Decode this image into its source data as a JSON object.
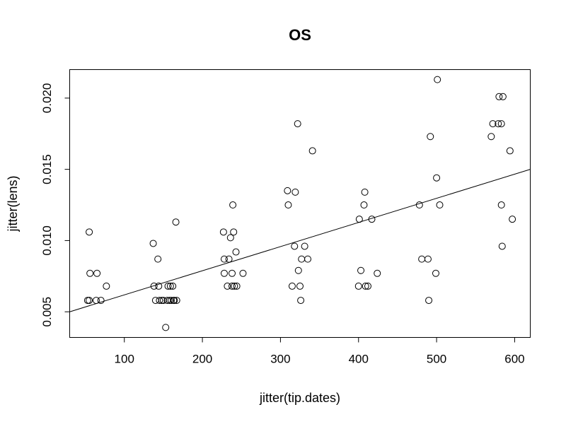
{
  "chart_data": {
    "type": "scatter",
    "title": "OS",
    "xlabel": "jitter(tip.dates)",
    "ylabel": "jitter(lens)",
    "xlim": [
      30,
      620
    ],
    "ylim": [
      0.0032,
      0.022
    ],
    "x_ticks": [
      100,
      200,
      300,
      400,
      500,
      600
    ],
    "y_ticks": [
      0.005,
      0.01,
      0.015,
      0.02
    ],
    "x_tick_labels": [
      "100",
      "200",
      "300",
      "400",
      "500",
      "600"
    ],
    "y_tick_labels": [
      "0.005",
      "0.010",
      "0.015",
      "0.020"
    ],
    "grid": false,
    "legend": "none",
    "regression_line": {
      "x": [
        30,
        620
      ],
      "y": [
        0.005,
        0.015
      ]
    },
    "points": [
      {
        "x": 53,
        "y": 0.0058
      },
      {
        "x": 55,
        "y": 0.0058
      },
      {
        "x": 55,
        "y": 0.0106
      },
      {
        "x": 56,
        "y": 0.0077
      },
      {
        "x": 64,
        "y": 0.0058
      },
      {
        "x": 65,
        "y": 0.0077
      },
      {
        "x": 70,
        "y": 0.0058
      },
      {
        "x": 77,
        "y": 0.0068
      },
      {
        "x": 137,
        "y": 0.0098
      },
      {
        "x": 138,
        "y": 0.0068
      },
      {
        "x": 140,
        "y": 0.0058
      },
      {
        "x": 143,
        "y": 0.0087
      },
      {
        "x": 144,
        "y": 0.0068
      },
      {
        "x": 145,
        "y": 0.0058
      },
      {
        "x": 148,
        "y": 0.0058
      },
      {
        "x": 150,
        "y": 0.0058
      },
      {
        "x": 153,
        "y": 0.0039
      },
      {
        "x": 155,
        "y": 0.0058
      },
      {
        "x": 156,
        "y": 0.0068
      },
      {
        "x": 158,
        "y": 0.0058
      },
      {
        "x": 159,
        "y": 0.0068
      },
      {
        "x": 160,
        "y": 0.0058
      },
      {
        "x": 162,
        "y": 0.0068
      },
      {
        "x": 163,
        "y": 0.0058
      },
      {
        "x": 164,
        "y": 0.0058
      },
      {
        "x": 166,
        "y": 0.0113
      },
      {
        "x": 167,
        "y": 0.0058
      },
      {
        "x": 227,
        "y": 0.0106
      },
      {
        "x": 228,
        "y": 0.0087
      },
      {
        "x": 228,
        "y": 0.0077
      },
      {
        "x": 232,
        "y": 0.0068
      },
      {
        "x": 234,
        "y": 0.0087
      },
      {
        "x": 236,
        "y": 0.0102
      },
      {
        "x": 238,
        "y": 0.0077
      },
      {
        "x": 238,
        "y": 0.0068
      },
      {
        "x": 239,
        "y": 0.0125
      },
      {
        "x": 240,
        "y": 0.0106
      },
      {
        "x": 241,
        "y": 0.0068
      },
      {
        "x": 243,
        "y": 0.0092
      },
      {
        "x": 244,
        "y": 0.0068
      },
      {
        "x": 252,
        "y": 0.0077
      },
      {
        "x": 309,
        "y": 0.0135
      },
      {
        "x": 310,
        "y": 0.0125
      },
      {
        "x": 315,
        "y": 0.0068
      },
      {
        "x": 318,
        "y": 0.0096
      },
      {
        "x": 319,
        "y": 0.0134
      },
      {
        "x": 322,
        "y": 0.0182
      },
      {
        "x": 323,
        "y": 0.0079
      },
      {
        "x": 325,
        "y": 0.0068
      },
      {
        "x": 326,
        "y": 0.0058
      },
      {
        "x": 327,
        "y": 0.0087
      },
      {
        "x": 331,
        "y": 0.0096
      },
      {
        "x": 335,
        "y": 0.0087
      },
      {
        "x": 341,
        "y": 0.0163
      },
      {
        "x": 400,
        "y": 0.0068
      },
      {
        "x": 401,
        "y": 0.0115
      },
      {
        "x": 403,
        "y": 0.0079
      },
      {
        "x": 407,
        "y": 0.0125
      },
      {
        "x": 408,
        "y": 0.0134
      },
      {
        "x": 409,
        "y": 0.0068
      },
      {
        "x": 412,
        "y": 0.0068
      },
      {
        "x": 417,
        "y": 0.0115
      },
      {
        "x": 424,
        "y": 0.0077
      },
      {
        "x": 478,
        "y": 0.0125
      },
      {
        "x": 481,
        "y": 0.0087
      },
      {
        "x": 489,
        "y": 0.0087
      },
      {
        "x": 490,
        "y": 0.0058
      },
      {
        "x": 492,
        "y": 0.0173
      },
      {
        "x": 499,
        "y": 0.0077
      },
      {
        "x": 500,
        "y": 0.0144
      },
      {
        "x": 501,
        "y": 0.0213
      },
      {
        "x": 504,
        "y": 0.0125
      },
      {
        "x": 570,
        "y": 0.0173
      },
      {
        "x": 572,
        "y": 0.0182
      },
      {
        "x": 579,
        "y": 0.0182
      },
      {
        "x": 580,
        "y": 0.0201
      },
      {
        "x": 583,
        "y": 0.0125
      },
      {
        "x": 583,
        "y": 0.0182
      },
      {
        "x": 584,
        "y": 0.0096
      },
      {
        "x": 585,
        "y": 0.0201
      },
      {
        "x": 594,
        "y": 0.0163
      },
      {
        "x": 597,
        "y": 0.0115
      }
    ]
  }
}
